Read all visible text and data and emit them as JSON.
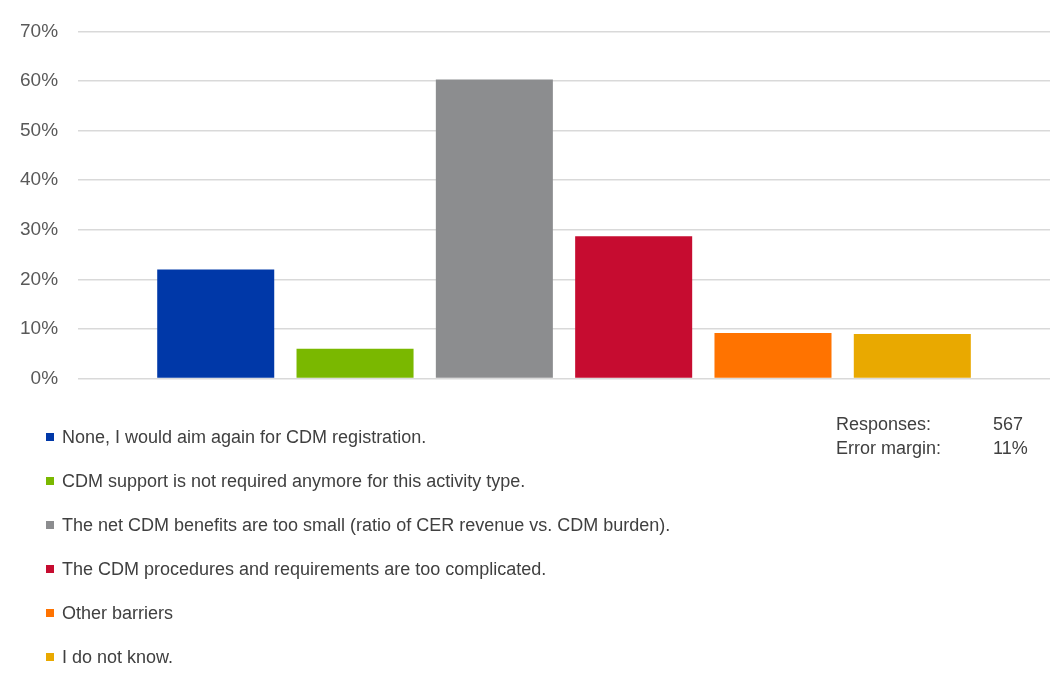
{
  "chart_data": {
    "type": "bar",
    "categories": [
      null
    ],
    "series": [
      {
        "name": "None, I would aim again for CDM registration.",
        "color": "#0038a8",
        "values": [
          22
        ]
      },
      {
        "name": "CDM support is not required anymore for this activity type.",
        "color": "#7ab800",
        "values": [
          6
        ]
      },
      {
        "name": "The net CDM benefits are too small (ratio of CER revenue vs. CDM burden).",
        "color": "#8c8d8f",
        "values": [
          60.3
        ]
      },
      {
        "name": "The CDM procedures and requirements are too complicated.",
        "color": "#c60c30",
        "values": [
          28.7
        ]
      },
      {
        "name": "Other barriers",
        "color": "#ff7300",
        "values": [
          9.2
        ]
      },
      {
        "name": "I do not know.",
        "color": "#e9a900",
        "values": [
          9
        ]
      }
    ],
    "ylim": [
      0,
      70
    ],
    "yticks": [
      {
        "value": 0,
        "label": "0%"
      },
      {
        "value": 10,
        "label": "10%"
      },
      {
        "value": 20,
        "label": "20%"
      },
      {
        "value": 30,
        "label": "30%"
      },
      {
        "value": 40,
        "label": "40%"
      },
      {
        "value": 50,
        "label": "50%"
      },
      {
        "value": 60,
        "label": "60%"
      },
      {
        "value": 70,
        "label": "70%"
      }
    ],
    "grid": "y",
    "legend": "bottom left",
    "annotations": [
      "Responses:",
      "567",
      "Error margin:",
      "11%"
    ]
  }
}
